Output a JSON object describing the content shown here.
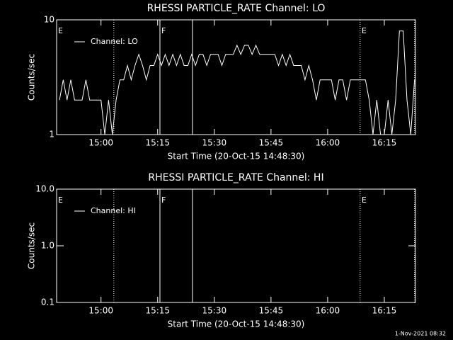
{
  "chart_data": [
    {
      "type": "line",
      "title": "RHESSI PARTICLE_RATE Channel: LO",
      "xlabel": "Start Time (20-Oct-15 14:48:30)",
      "ylabel": "Counts/sec",
      "ylog": true,
      "ylim": [
        1,
        10
      ],
      "yticks": [
        1,
        10
      ],
      "xlim": [
        888.25,
        983.25
      ],
      "xticks": [
        {
          "value": 900,
          "label": "15:00"
        },
        {
          "value": 915,
          "label": "15:15"
        },
        {
          "value": 930,
          "label": "15:30"
        },
        {
          "value": 945,
          "label": "15:45"
        },
        {
          "value": 960,
          "label": "16:00"
        },
        {
          "value": 975,
          "label": "16:15"
        }
      ],
      "x": [
        889,
        890,
        891,
        892,
        893,
        894,
        895,
        896,
        897,
        898,
        899,
        900,
        901,
        902,
        903,
        904,
        905,
        906,
        907,
        908,
        909,
        910,
        911,
        912,
        913,
        914,
        915,
        916,
        917,
        918,
        919,
        920,
        921,
        922,
        923,
        924,
        925,
        926,
        927,
        928,
        929,
        930,
        931,
        932,
        933,
        934,
        935,
        936,
        937,
        938,
        939,
        940,
        941,
        942,
        943,
        944,
        945,
        946,
        947,
        948,
        949,
        950,
        951,
        952,
        953,
        954,
        955,
        956,
        957,
        958,
        959,
        960,
        961,
        962,
        963,
        964,
        965,
        966,
        967,
        968,
        969,
        970,
        971,
        972,
        973,
        974,
        975,
        976,
        977,
        978,
        979,
        980,
        981,
        982,
        983
      ],
      "series": [
        {
          "name": "Channel: LO",
          "color": "#ffffff",
          "values": [
            2,
            3,
            2,
            3,
            2,
            2,
            2,
            3,
            2,
            2,
            2,
            2,
            1,
            2,
            1,
            2,
            3,
            3,
            4,
            3,
            4,
            5,
            4,
            3,
            4,
            4,
            5,
            4,
            5,
            4,
            5,
            4,
            5,
            4,
            4,
            5,
            4,
            5,
            5,
            4,
            5,
            5,
            5,
            4,
            5,
            5,
            5,
            6,
            5,
            6,
            6,
            5,
            6,
            5,
            5,
            5,
            5,
            5,
            4,
            5,
            4,
            5,
            4,
            4,
            4,
            3,
            4,
            3,
            2,
            3,
            3,
            3,
            3,
            2,
            3,
            3,
            2,
            3,
            3,
            3,
            3,
            3,
            2,
            1,
            2,
            1,
            1,
            2,
            1,
            2,
            8,
            8,
            2,
            1,
            3
          ]
        }
      ],
      "markers": [
        {
          "x": 888.25,
          "style": "solid",
          "label": "E"
        },
        {
          "x": 903.4,
          "style": "dotted"
        },
        {
          "x": 915.6,
          "style": "solid",
          "label": "F"
        },
        {
          "x": 924.2,
          "style": "solid"
        },
        {
          "x": 968.6,
          "style": "dotted",
          "label": "E"
        },
        {
          "x": 983.0,
          "style": "dotted"
        }
      ]
    },
    {
      "type": "line",
      "title": "RHESSI PARTICLE_RATE Channel: HI",
      "xlabel": "Start Time (20-Oct-15 14:48:30)",
      "ylabel": "Counts/sec",
      "ylog": true,
      "ylim": [
        0.1,
        10
      ],
      "yticks": [
        0.1,
        {
          "value": 1,
          "label": "1.0"
        },
        {
          "value": 10,
          "label": "10.0"
        }
      ],
      "xlim": [
        888.25,
        983.25
      ],
      "xticks": [
        {
          "value": 900,
          "label": "15:00"
        },
        {
          "value": 915,
          "label": "15:15"
        },
        {
          "value": 930,
          "label": "15:30"
        },
        {
          "value": 945,
          "label": "15:45"
        },
        {
          "value": 960,
          "label": "16:00"
        },
        {
          "value": 975,
          "label": "16:15"
        }
      ],
      "x": [],
      "series": [
        {
          "name": "Channel: HI",
          "color": "#ffffff",
          "values": []
        }
      ],
      "markers": [
        {
          "x": 888.25,
          "style": "solid",
          "label": "E"
        },
        {
          "x": 903.4,
          "style": "dotted"
        },
        {
          "x": 915.6,
          "style": "solid",
          "label": "F"
        },
        {
          "x": 924.2,
          "style": "solid"
        },
        {
          "x": 968.6,
          "style": "dotted",
          "label": "E"
        },
        {
          "x": 983.0,
          "style": "dotted"
        }
      ]
    }
  ],
  "footer": "1-Nov-2021 08:32"
}
